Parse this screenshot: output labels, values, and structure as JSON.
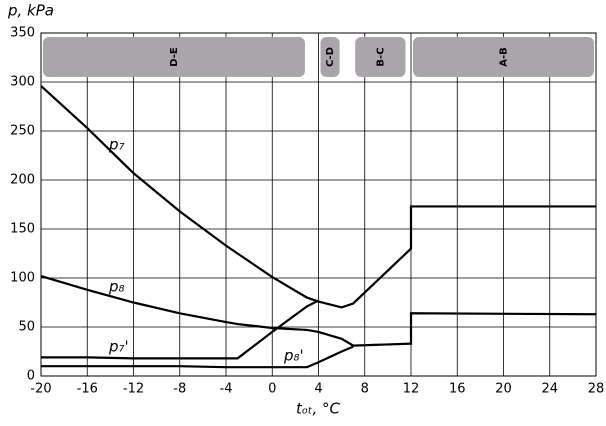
{
  "chart_data": {
    "type": "line",
    "x_label": "tₒₜ, °C",
    "y_label": "p, kPa",
    "x": [
      -20,
      -16,
      -12,
      -8,
      -4,
      -3,
      0,
      3,
      4,
      6,
      7,
      12,
      12,
      28
    ],
    "series": [
      {
        "name": "p₇",
        "color": "#000000",
        "values": [
          296,
          253,
          207,
          168,
          133,
          125,
          101,
          80,
          76,
          70,
          74,
          130,
          173,
          173
        ]
      },
      {
        "name": "p₈",
        "color": "#000000",
        "values": [
          102,
          88,
          75,
          64,
          55,
          53,
          49,
          47,
          45,
          38,
          31,
          33,
          64,
          63
        ]
      },
      {
        "name": "p₇'",
        "color": "#000000",
        "values": [
          19,
          19,
          18,
          18,
          18,
          18,
          45,
          71,
          77,
          null,
          null,
          null,
          null,
          null
        ]
      },
      {
        "name": "p₈'",
        "color": "#000000",
        "values": [
          10,
          10,
          10,
          10,
          9,
          9,
          9,
          9,
          14,
          25,
          30,
          null,
          null,
          null
        ]
      }
    ],
    "zones": [
      {
        "label": "D-E",
        "x0": -20,
        "x1": 3
      },
      {
        "label": "C-D",
        "x0": 4,
        "x1": 6
      },
      {
        "label": "B-C",
        "x0": 7,
        "x1": 11.7
      },
      {
        "label": "A-B",
        "x0": 12,
        "x1": 28
      }
    ],
    "zone_color": "#a9a6aa",
    "xlim": [
      -20,
      28
    ],
    "xticks": [
      -20,
      -16,
      -12,
      -8,
      -4,
      0,
      4,
      8,
      12,
      16,
      20,
      24,
      28
    ],
    "ylim": [
      0,
      350
    ],
    "yticks": [
      0,
      50,
      100,
      150,
      200,
      250,
      300,
      350
    ],
    "grid": true
  }
}
